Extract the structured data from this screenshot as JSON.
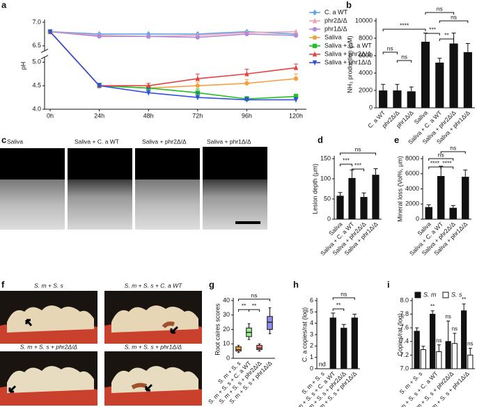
{
  "chart_data": [
    {
      "panel": "a",
      "type": "line",
      "ylabel": "pH",
      "categories": [
        "0h",
        "24h",
        "48h",
        "72h",
        "96h",
        "120h"
      ],
      "ylim": [
        4.0,
        7.0
      ],
      "axis_break": [
        5.1,
        6.4
      ],
      "yticks": [
        {
          "value": 4,
          "label": "4.0"
        },
        4.5,
        {
          "value": 5,
          "label": "5.0"
        },
        6.5,
        {
          "value": 7,
          "label": "7.0"
        }
      ],
      "legend": "upper right",
      "series": [
        {
          "name": "C. a WT",
          "color": "#5aa5e6",
          "marker": "diamond",
          "values": [
            6.8,
            6.75,
            6.75,
            6.75,
            6.8,
            6.75
          ]
        },
        {
          "name": "phr2Δ/Δ",
          "color": "#f4a0b0",
          "marker": "triangle",
          "values": [
            6.8,
            6.72,
            6.7,
            6.72,
            6.78,
            6.8
          ]
        },
        {
          "name": "phr1Δ/Δ",
          "color": "#b08ad8",
          "marker": "circle",
          "values": [
            6.8,
            6.7,
            6.7,
            6.68,
            6.75,
            6.72
          ]
        },
        {
          "name": "Saliva",
          "color": "#f5a040",
          "marker": "circle",
          "values": [
            6.8,
            4.5,
            4.45,
            4.5,
            4.55,
            4.65
          ],
          "errors": [
            0,
            0.05,
            0.05,
            0.08,
            0.08,
            0.1
          ]
        },
        {
          "name": "Saliva + C. a WT",
          "color": "#22c022",
          "marker": "square",
          "values": [
            6.8,
            4.5,
            4.45,
            4.35,
            4.22,
            4.27
          ],
          "errors": [
            0,
            0.05,
            0.05,
            0.08,
            0.05,
            0.05
          ]
        },
        {
          "name": "Saliva + phr2Δ/Δ",
          "color": "#e84040",
          "marker": "triangle",
          "values": [
            6.8,
            4.5,
            4.5,
            4.65,
            4.75,
            4.88
          ],
          "errors": [
            0,
            0.05,
            0.05,
            0.1,
            0.1,
            0.08
          ]
        },
        {
          "name": "Saliva + phr1Δ/Δ",
          "color": "#3050e0",
          "marker": "triangle-down",
          "values": [
            6.8,
            4.5,
            4.35,
            4.25,
            4.2,
            4.2
          ],
          "errors": [
            0,
            0.05,
            0.1,
            0.1,
            0.05,
            0.05
          ]
        }
      ]
    },
    {
      "panel": "b",
      "type": "bar",
      "ylabel": "NH₃ production (μM)",
      "color": "#111111",
      "categories": [
        "C. a WT",
        "phr2Δ/Δ",
        "phr1Δ/Δ",
        "Saliva",
        "Saliva + C. a WT",
        "Saliva + phr2Δ/Δ",
        "Saliva + phr1Δ/Δ"
      ],
      "values": [
        2000,
        2000,
        1900,
        7600,
        5200,
        7400,
        6400
      ],
      "errors": [
        700,
        700,
        500,
        1000,
        500,
        1200,
        1000
      ],
      "ylim": [
        0,
        10000
      ],
      "yticks": [
        0,
        2000,
        4000,
        6000,
        8000,
        10000
      ],
      "annotations": [
        {
          "from": 0,
          "to": 1,
          "text": "ns"
        },
        {
          "from": 1,
          "to": 2,
          "text": "ns"
        },
        {
          "from": 0,
          "to": 3,
          "text": "****"
        },
        {
          "from": 3,
          "to": 4,
          "text": "***"
        },
        {
          "from": 4,
          "to": 5,
          "text": "**"
        },
        {
          "from": 3,
          "to": 5,
          "text": "ns"
        },
        {
          "from": 4,
          "to": 6,
          "text": "ns"
        }
      ]
    },
    {
      "panel": "d",
      "type": "bar",
      "ylabel": "Lesion depth (μm)",
      "color": "#111111",
      "categories": [
        "Saliva",
        "Saliva + C. a WT",
        "Saliva + phr2Δ/Δ",
        "Saliva + phr1Δ/Δ"
      ],
      "values": [
        58,
        102,
        55,
        110
      ],
      "errors": [
        8,
        20,
        10,
        15
      ],
      "ylim": [
        0,
        150
      ],
      "yticks": [
        0,
        50,
        100,
        150
      ],
      "annotations": [
        {
          "from": 0,
          "to": 1,
          "text": "***"
        },
        {
          "from": 1,
          "to": 2,
          "text": "***"
        },
        {
          "from": 0,
          "to": 3,
          "text": "ns"
        }
      ]
    },
    {
      "panel": "e",
      "type": "bar",
      "ylabel": "Mineral loss (Vol%, μm)",
      "color": "#111111",
      "categories": [
        "Saliva",
        "Saliva + C. a WT",
        "Saliva + phr2Δ/Δ",
        "Saliva + phr1Δ/Δ"
      ],
      "values": [
        1600,
        5700,
        1500,
        5600
      ],
      "errors": [
        300,
        1300,
        300,
        900
      ],
      "ylim": [
        0,
        8000
      ],
      "yticks": [
        0,
        2000,
        4000,
        6000,
        8000
      ],
      "annotations": [
        {
          "from": 0,
          "to": 1,
          "text": "****"
        },
        {
          "from": 1,
          "to": 2,
          "text": "****"
        },
        {
          "from": 0,
          "to": 2,
          "text": "ns"
        },
        {
          "from": 1,
          "to": 3,
          "text": "ns"
        }
      ]
    },
    {
      "panel": "g",
      "type": "box",
      "ylabel": "Root caires scores",
      "categories": [
        "S. m + S. s",
        "S. m + S. s + C. a WT",
        "S. m + S. s + phr2Δ/Δ",
        "S. m + S. s + phr1Δ/Δ"
      ],
      "colors": [
        "#f5a040",
        "#98ee90",
        "#f08080",
        "#8c8cf0"
      ],
      "boxes": [
        {
          "min": 4,
          "q1": 5,
          "median": 6,
          "q3": 8,
          "max": 9
        },
        {
          "min": 13,
          "q1": 15,
          "median": 18,
          "q3": 21,
          "max": 24
        },
        {
          "min": 5,
          "q1": 6,
          "median": 7,
          "q3": 9,
          "max": 10
        },
        {
          "min": 17,
          "q1": 20,
          "median": 25,
          "q3": 29,
          "max": 35
        }
      ],
      "ylim": [
        0,
        40
      ],
      "yticks": [
        0,
        10,
        20,
        30,
        40
      ],
      "annotations": [
        {
          "from": 0,
          "to": 1,
          "text": "**"
        },
        {
          "from": 1,
          "to": 2,
          "text": "**"
        },
        {
          "from": 0,
          "to": 3,
          "text": "ns"
        }
      ]
    },
    {
      "panel": "h",
      "type": "bar",
      "ylabel": "C. a copies/rat (log)",
      "color": "#111111",
      "categories": [
        "S. m + S. s",
        "S. m + S. s + C. a WT",
        "S. m + S. s + phr2Δ/Δ",
        "S. m + S. s + phr1Δ/Δ"
      ],
      "values": [
        null,
        4.5,
        3.6,
        4.5
      ],
      "value_labels": [
        "nd",
        null,
        null,
        null
      ],
      "errors": [
        null,
        0.4,
        0.3,
        0.3
      ],
      "ylim": [
        0,
        6
      ],
      "yticks": [
        0,
        1,
        2,
        3,
        4,
        5,
        6
      ],
      "annotations": [
        {
          "from": 1,
          "to": 2,
          "text": "**"
        },
        {
          "from": 1,
          "to": 3,
          "text": "ns"
        }
      ]
    },
    {
      "panel": "i",
      "type": "bar",
      "ylabel": "Copies/rat (log)",
      "categories": [
        "S. m + S. s",
        "S. m + S. s + C. a WT",
        "S. m + S. s + phr2Δ/Δ",
        "S. m + S. s + phr1Δ/Δ"
      ],
      "ylim": [
        7.0,
        8.0
      ],
      "yticks": [
        {
          "value": 7,
          "label": "7.0"
        },
        7.2,
        7.4,
        7.6,
        7.8,
        {
          "value": 8,
          "label": "8.0"
        }
      ],
      "series": [
        {
          "name": "S. m",
          "color": "#111111",
          "values": [
            7.55,
            7.8,
            7.4,
            7.85
          ],
          "errors": [
            0.05,
            0.05,
            0.3,
            0.1
          ],
          "significance": [
            null,
            "**",
            "ns",
            "**"
          ]
        },
        {
          "name": "S. s",
          "color": "#ffffff",
          "values": [
            7.28,
            7.25,
            7.37,
            7.2
          ],
          "errors": [
            0.05,
            0.1,
            0.15,
            0.1
          ],
          "significance": [
            null,
            "ns",
            "ns",
            "ns"
          ]
        }
      ]
    }
  ],
  "images": [
    {
      "panel": "c",
      "labels": [
        "Saliva",
        "Saliva + C. a WT",
        "Saliva + phr2Δ/Δ",
        "Saliva + phr1Δ/Δ"
      ]
    },
    {
      "panel": "f",
      "labels": [
        "S. m + S. s",
        "S. m + S. s + C. a WT",
        "S. m + S. s + phr2Δ/Δ",
        "S. m + S. s + phr1Δ/Δ"
      ]
    }
  ]
}
